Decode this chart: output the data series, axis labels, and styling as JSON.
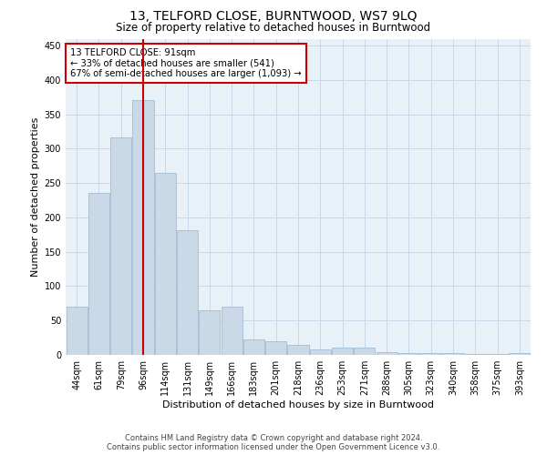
{
  "title": "13, TELFORD CLOSE, BURNTWOOD, WS7 9LQ",
  "subtitle": "Size of property relative to detached houses in Burntwood",
  "xlabel": "Distribution of detached houses by size in Burntwood",
  "ylabel": "Number of detached properties",
  "footer_line1": "Contains HM Land Registry data © Crown copyright and database right 2024.",
  "footer_line2": "Contains public sector information licensed under the Open Government Licence v3.0.",
  "categories": [
    "44sqm",
    "61sqm",
    "79sqm",
    "96sqm",
    "114sqm",
    "131sqm",
    "149sqm",
    "166sqm",
    "183sqm",
    "201sqm",
    "218sqm",
    "236sqm",
    "253sqm",
    "271sqm",
    "288sqm",
    "305sqm",
    "323sqm",
    "340sqm",
    "358sqm",
    "375sqm",
    "393sqm"
  ],
  "values": [
    70,
    235,
    317,
    370,
    265,
    182,
    65,
    70,
    22,
    20,
    15,
    8,
    10,
    10,
    4,
    3,
    2,
    2,
    1,
    1,
    3
  ],
  "bar_color": "#c9d9e8",
  "bar_edge_color": "#a0bcd4",
  "red_line_x": 3.0,
  "annotation_text_line1": "13 TELFORD CLOSE: 91sqm",
  "annotation_text_line2": "← 33% of detached houses are smaller (541)",
  "annotation_text_line3": "67% of semi-detached houses are larger (1,093) →",
  "annotation_box_color": "#cc0000",
  "ylim": [
    0,
    460
  ],
  "yticks": [
    0,
    50,
    100,
    150,
    200,
    250,
    300,
    350,
    400,
    450
  ],
  "background_color": "#ffffff",
  "plot_bg_color": "#e8f0f8",
  "grid_color": "#c8d8e8",
  "title_fontsize": 10,
  "subtitle_fontsize": 8.5,
  "xlabel_fontsize": 8,
  "ylabel_fontsize": 8,
  "tick_fontsize": 7,
  "footer_fontsize": 6
}
